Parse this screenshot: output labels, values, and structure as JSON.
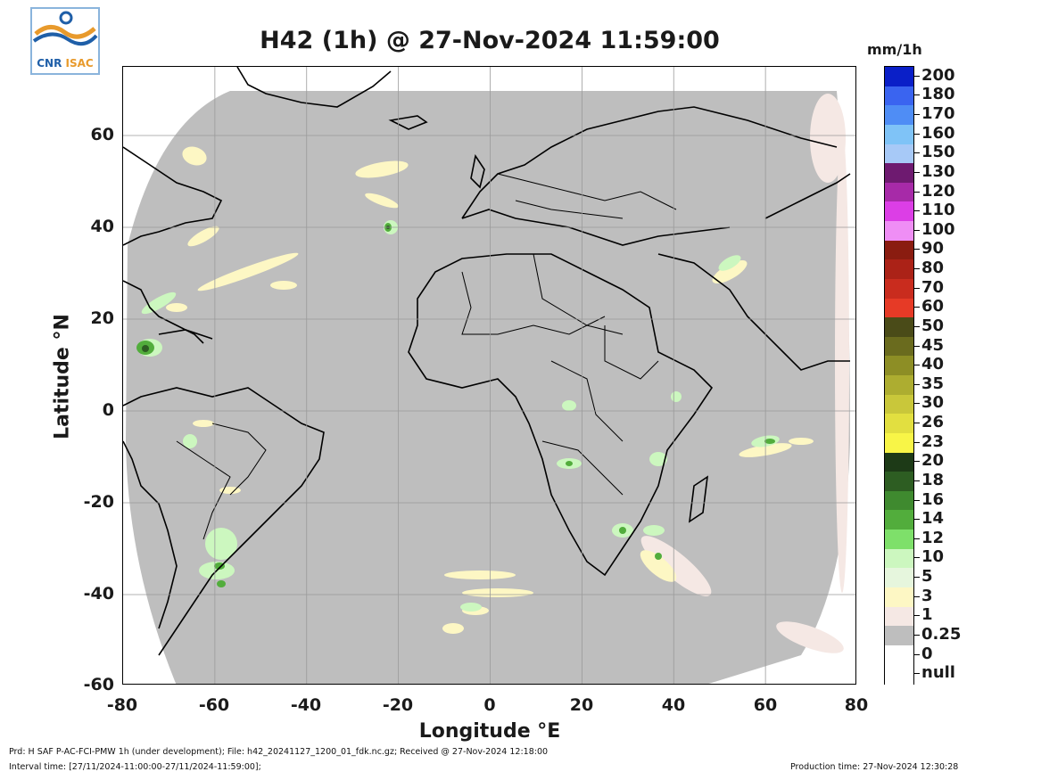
{
  "logo": {
    "text_left": "CNR",
    "text_right": "ISAC"
  },
  "title": "H42 (1h) @ 27-Nov-2024 11:59:00",
  "axes": {
    "xlabel": "Longitude °E",
    "ylabel": "Latitude °N",
    "xticks": [
      "-80",
      "-60",
      "-40",
      "-20",
      "0",
      "20",
      "40",
      "60",
      "80"
    ],
    "yticks": [
      "60",
      "40",
      "20",
      "0",
      "-20",
      "-40",
      "-60"
    ]
  },
  "colorbar": {
    "unit": "mm/1h",
    "levels": [
      {
        "label": "200",
        "color": "#0a1fc8"
      },
      {
        "label": "180",
        "color": "#3a64f0"
      },
      {
        "label": "170",
        "color": "#4f8df5"
      },
      {
        "label": "160",
        "color": "#7fc3f7"
      },
      {
        "label": "150",
        "color": "#a7c9f7"
      },
      {
        "label": "130",
        "color": "#6e1a70"
      },
      {
        "label": "120",
        "color": "#a72aa8"
      },
      {
        "label": "110",
        "color": "#dc3ee6"
      },
      {
        "label": "100",
        "color": "#ef8ef5"
      },
      {
        "label": "90",
        "color": "#8a1c10"
      },
      {
        "label": "80",
        "color": "#ab2217"
      },
      {
        "label": "70",
        "color": "#c92c1e"
      },
      {
        "label": "60",
        "color": "#e63a26"
      },
      {
        "label": "50",
        "color": "#4a4b18"
      },
      {
        "label": "45",
        "color": "#6a6b1e"
      },
      {
        "label": "40",
        "color": "#8d8e25"
      },
      {
        "label": "35",
        "color": "#adad30"
      },
      {
        "label": "30",
        "color": "#c9c73a"
      },
      {
        "label": "26",
        "color": "#e2df40"
      },
      {
        "label": "23",
        "color": "#f8f547"
      },
      {
        "label": "20",
        "color": "#1d3a17"
      },
      {
        "label": "18",
        "color": "#2d5d22"
      },
      {
        "label": "16",
        "color": "#3f8a2f"
      },
      {
        "label": "14",
        "color": "#52ad3c"
      },
      {
        "label": "12",
        "color": "#7ee06a"
      },
      {
        "label": "10",
        "color": "#ccf7bf"
      },
      {
        "label": "5",
        "color": "#e6f6dd"
      },
      {
        "label": "3",
        "color": "#fdf7c4"
      },
      {
        "label": "1",
        "color": "#f5e8e4"
      },
      {
        "label": "0.25",
        "color": "#bebebe"
      },
      {
        "label": "0",
        "color": "#ffffff"
      },
      {
        "label": "null",
        "color": "#ffffff"
      }
    ]
  },
  "footer": {
    "line1": "Prd: H SAF P-AC-FCI-PMW 1h (under development); File: h42_20241127_1200_01_fdk.nc.gz; Received @ 27-Nov-2024 12:18:00",
    "line2": "Interval time: [27/11/2024-11:00:00-27/11/2024-11:59:00];",
    "production": "Production time: 27-Nov-2024 12:30:28"
  },
  "map_colors": {
    "no_rain": "#bebebe",
    "light": "#f5e8e4",
    "drizzle": "#fdf7c4",
    "moderate": "#ccf7bf",
    "heavy": "#52ad3c",
    "intense": "#2d5d22",
    "coast": "#000000",
    "grid": "#9a9a9a"
  }
}
